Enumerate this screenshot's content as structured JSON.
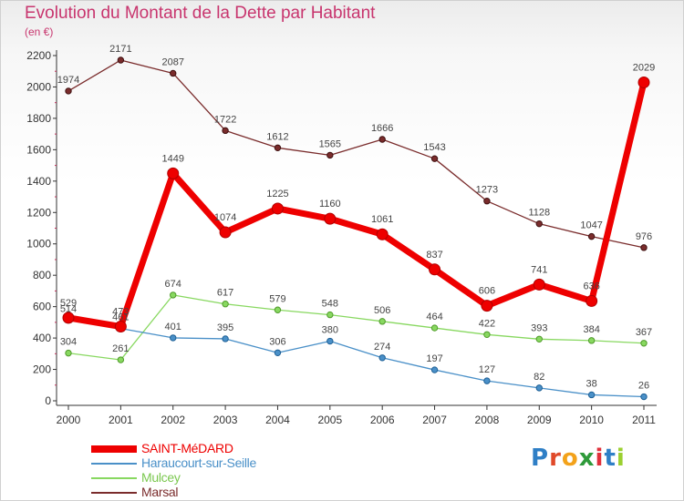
{
  "title": "Evolution du Montant de la Dette par Habitant",
  "unit_label": "(en €)",
  "logo_text": "Proxiti",
  "chart_data": {
    "type": "line",
    "x": [
      "2000",
      "2001",
      "2002",
      "2003",
      "2004",
      "2005",
      "2006",
      "2007",
      "2008",
      "2009",
      "2010",
      "2011"
    ],
    "ylim": [
      0,
      2200
    ],
    "yticks": [
      0,
      200,
      400,
      600,
      800,
      1000,
      1200,
      1400,
      1600,
      1800,
      2000,
      2200
    ],
    "grid": false,
    "legend_position": "bottom-left",
    "series": [
      {
        "name": "SAINT-MéDARD",
        "color": "#ee0000",
        "values": [
          529,
          473,
          1449,
          1074,
          1225,
          1160,
          1061,
          837,
          606,
          741,
          636,
          2029
        ]
      },
      {
        "name": "Haraucourt-sur-Seille",
        "color": "#4a90c8",
        "values": [
          514,
          461,
          401,
          395,
          306,
          380,
          274,
          197,
          127,
          82,
          38,
          26
        ]
      },
      {
        "name": "Mulcey",
        "color": "#88d860",
        "values": [
          304,
          261,
          674,
          617,
          579,
          548,
          506,
          464,
          422,
          393,
          384,
          367
        ]
      },
      {
        "name": "Marsal",
        "color": "#7a2c2c",
        "values": [
          1974,
          2171,
          2087,
          1722,
          1612,
          1565,
          1666,
          1543,
          1273,
          1128,
          1047,
          976
        ]
      }
    ]
  }
}
